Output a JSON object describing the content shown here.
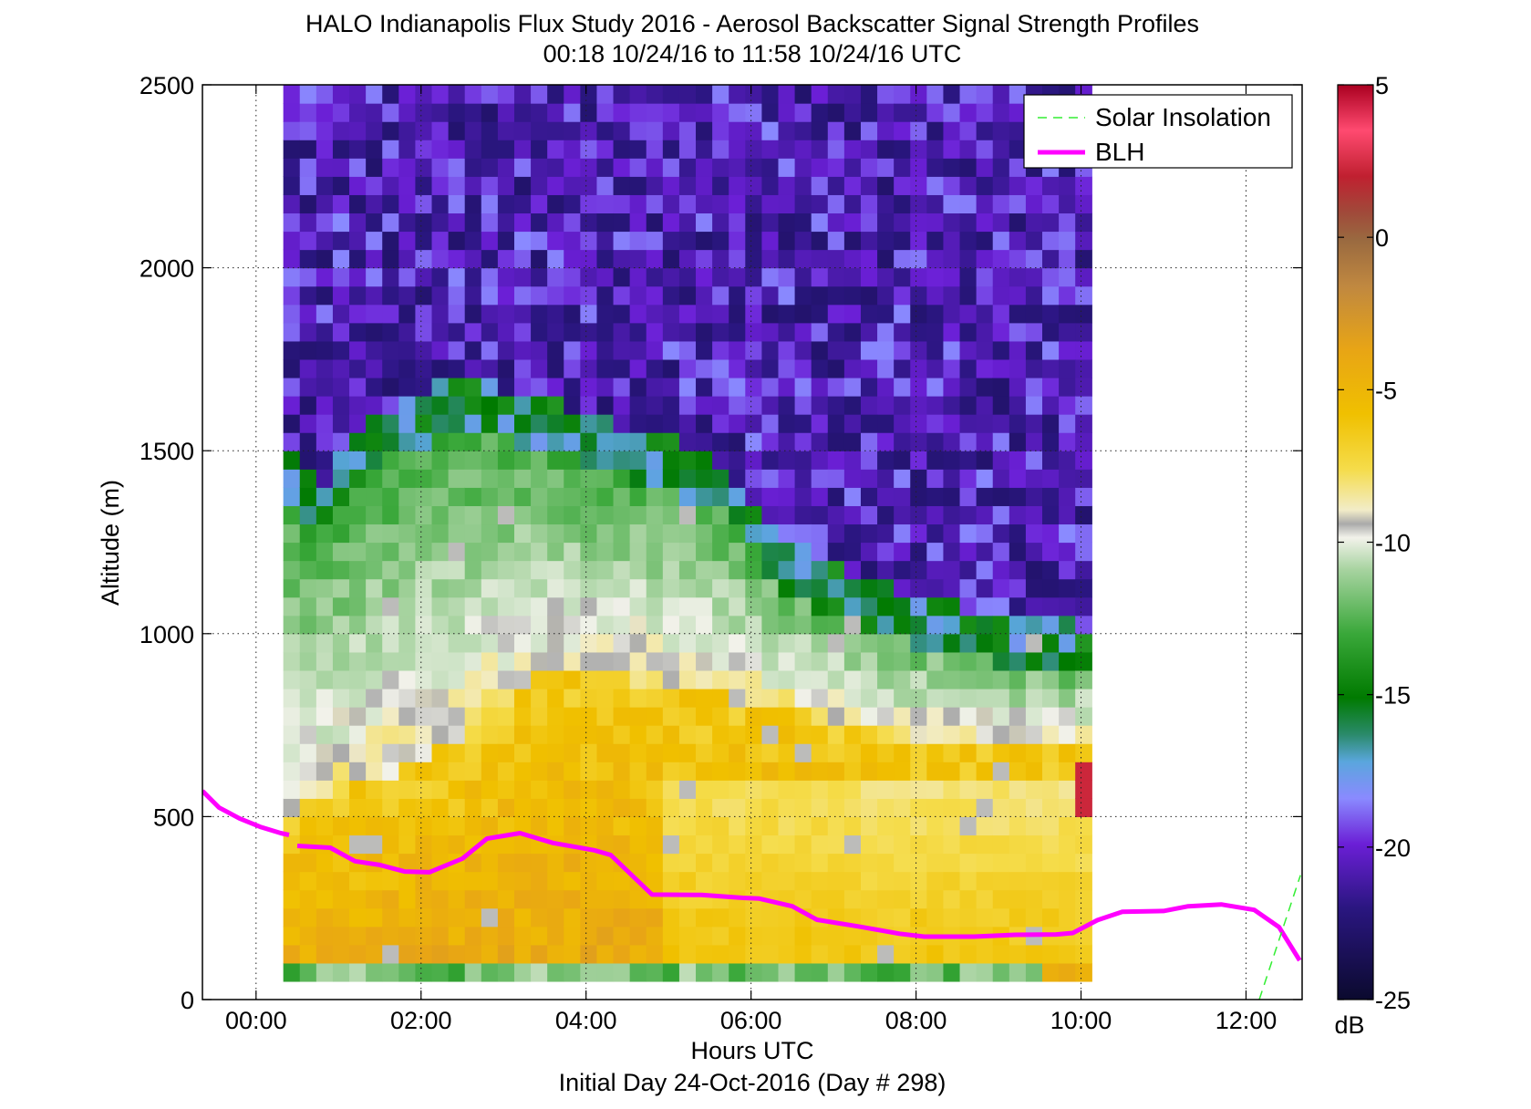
{
  "chart_data": {
    "type": "heatmap",
    "title": "HALO Indianapolis Flux Study 2016 - Aerosol Backscatter Signal Strength Profiles",
    "subtitle": "00:18 10/24/16 to 11:58 10/24/16  UTC",
    "xlabel": "Hours UTC",
    "xlabel2": "Initial Day 24-Oct-2016 (Day # 298)",
    "ylabel": "Altitude (m)",
    "xlim_hours": [
      -0.65,
      12.68
    ],
    "ylim": [
      0,
      2500
    ],
    "x_ticks": [
      {
        "value": 0,
        "label": "00:00"
      },
      {
        "value": 2,
        "label": "02:00"
      },
      {
        "value": 4,
        "label": "04:00"
      },
      {
        "value": 6,
        "label": "06:00"
      },
      {
        "value": 8,
        "label": "08:00"
      },
      {
        "value": 10,
        "label": "10:00"
      },
      {
        "value": 12,
        "label": "12:00"
      }
    ],
    "y_ticks": [
      {
        "value": 0,
        "label": "0"
      },
      {
        "value": 500,
        "label": "500"
      },
      {
        "value": 1000,
        "label": "1000"
      },
      {
        "value": 1500,
        "label": "1500"
      },
      {
        "value": 2000,
        "label": "2000"
      },
      {
        "value": 2500,
        "label": "2500"
      }
    ],
    "grid": true,
    "colorbar": {
      "range": [
        -25,
        5
      ],
      "unit": "dB",
      "ticks": [
        {
          "value": 5,
          "label": "5"
        },
        {
          "value": 0,
          "label": "0"
        },
        {
          "value": -5,
          "label": "-5"
        },
        {
          "value": -10,
          "label": "-10"
        },
        {
          "value": -15,
          "label": "-15"
        },
        {
          "value": -20,
          "label": "-20"
        },
        {
          "value": -25,
          "label": "-25"
        }
      ]
    },
    "heatmap": {
      "x_start": 0.33,
      "x_step": 0.2,
      "columns": 49,
      "y_start": 50,
      "y_step": 50,
      "rows": 49,
      "value_range_db": [
        -25,
        5
      ],
      "bands_description_note": ""
    },
    "series": [
      {
        "name": "BLH",
        "color": "#ff00ff",
        "segments": [
          [
            [
              -0.65,
              570
            ],
            [
              -0.45,
              525
            ],
            [
              -0.2,
              495
            ],
            [
              0.05,
              472
            ],
            [
              0.3,
              455
            ],
            [
              0.4,
              450
            ]
          ],
          [
            [
              0.5,
              420
            ],
            [
              0.9,
              415
            ],
            [
              1.2,
              378
            ],
            [
              1.5,
              368
            ],
            [
              1.8,
              350
            ],
            [
              2.1,
              348
            ],
            [
              2.5,
              385
            ],
            [
              2.8,
              440
            ],
            [
              3.2,
              455
            ],
            [
              3.6,
              428
            ],
            [
              4.1,
              408
            ],
            [
              4.3,
              395
            ],
            [
              4.8,
              287
            ],
            [
              5.4,
              286
            ],
            [
              5.9,
              278
            ],
            [
              6.1,
              276
            ],
            [
              6.5,
              255
            ],
            [
              6.8,
              218
            ],
            [
              7.3,
              200
            ],
            [
              7.8,
              180
            ],
            [
              8.1,
              172
            ],
            [
              8.7,
              172
            ],
            [
              9.2,
              177
            ],
            [
              9.7,
              178
            ],
            [
              9.9,
              182
            ],
            [
              10.2,
              217
            ],
            [
              10.5,
              240
            ],
            [
              11.0,
              242
            ],
            [
              11.3,
              255
            ],
            [
              11.7,
              260
            ],
            [
              12.1,
              245
            ],
            [
              12.4,
              198
            ],
            [
              12.65,
              107
            ]
          ]
        ]
      },
      {
        "name": "Solar Insolation",
        "color": "#33ee33",
        "style": "dashed",
        "points": [
          [
            12.16,
            0
          ],
          [
            12.66,
            340
          ]
        ]
      }
    ],
    "legend": {
      "placement": "top-right",
      "entries": [
        {
          "label": "Solar Insolation",
          "color": "#33ee33",
          "style": "dashed"
        },
        {
          "label": "BLH",
          "color": "#ff00ff",
          "style": "solid"
        }
      ]
    }
  }
}
